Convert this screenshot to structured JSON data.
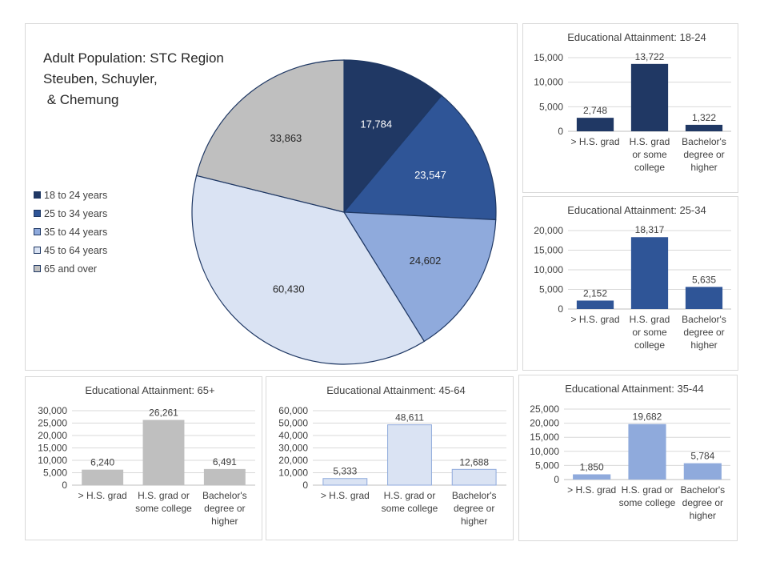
{
  "chart_data": [
    {
      "type": "pie",
      "title_lines": [
        "Adult Population: STC Region",
        "Steuben, Schuyler,",
        " & Chemung"
      ],
      "slices": [
        {
          "label": "18 to 24 years",
          "value": 17784,
          "value_label": "17,784",
          "color": "#203864"
        },
        {
          "label": "25 to 34 years",
          "value": 23547,
          "value_label": "23,547",
          "color": "#2f5597"
        },
        {
          "label": "35 to 44 years",
          "value": 24602,
          "value_label": "24,602",
          "color": "#8faadc"
        },
        {
          "label": "45 to 64 years",
          "value": 60430,
          "value_label": "60,430",
          "color": "#dae3f3"
        },
        {
          "label": "65 and over",
          "value": 33863,
          "value_label": "33,863",
          "color": "#bfbfbf"
        }
      ],
      "legend_position": "left"
    },
    {
      "type": "bar",
      "title": "Educational Attainment:  18-24",
      "categories": [
        [
          "> H.S. grad"
        ],
        [
          "H.S. grad",
          "or some",
          "college"
        ],
        [
          "Bachelor's",
          "degree or",
          "higher"
        ]
      ],
      "values": [
        2748,
        13722,
        1322
      ],
      "value_labels": [
        "2,748",
        "13,722",
        "1,322"
      ],
      "ylim": [
        0,
        15000
      ],
      "yticks": [
        "0",
        "5,000",
        "10,000",
        "15,000"
      ],
      "color": "#203864",
      "grid": true
    },
    {
      "type": "bar",
      "title": "Educational Attainment:  25-34",
      "categories": [
        [
          "> H.S. grad"
        ],
        [
          "H.S. grad",
          "or some",
          "college"
        ],
        [
          "Bachelor's",
          "degree or",
          "higher"
        ]
      ],
      "values": [
        2152,
        18317,
        5635
      ],
      "value_labels": [
        "2,152",
        "18,317",
        "5,635"
      ],
      "ylim": [
        0,
        20000
      ],
      "yticks": [
        "0",
        "5,000",
        "10,000",
        "15,000",
        "20,000"
      ],
      "color": "#2f5597",
      "grid": true
    },
    {
      "type": "bar",
      "title": "Educational Attainment:  65+",
      "categories": [
        [
          "> H.S. grad"
        ],
        [
          "H.S. grad or",
          "some college"
        ],
        [
          "Bachelor's",
          "degree or",
          "higher"
        ]
      ],
      "values": [
        6240,
        26261,
        6491
      ],
      "value_labels": [
        "6,240",
        "26,261",
        "6,491"
      ],
      "ylim": [
        0,
        30000
      ],
      "yticks": [
        "0",
        "5,000",
        "10,000",
        "15,000",
        "20,000",
        "25,000",
        "30,000"
      ],
      "color": "#bfbfbf",
      "grid": true
    },
    {
      "type": "bar",
      "title": "Educational Attainment:  45-64",
      "categories": [
        [
          "> H.S. grad"
        ],
        [
          "H.S. grad or",
          "some college"
        ],
        [
          "Bachelor's",
          "degree or",
          "higher"
        ]
      ],
      "values": [
        5333,
        48611,
        12688
      ],
      "value_labels": [
        "5,333",
        "48,611",
        "12,688"
      ],
      "ylim": [
        0,
        60000
      ],
      "yticks": [
        "0",
        "10,000",
        "20,000",
        "30,000",
        "40,000",
        "50,000",
        "60,000"
      ],
      "color": "#dae3f3",
      "grid": true
    },
    {
      "type": "bar",
      "title": "Educational Attainment:  35-44",
      "categories": [
        [
          "> H.S. grad"
        ],
        [
          "H.S. grad or",
          "some college"
        ],
        [
          "Bachelor's",
          "degree or",
          "higher"
        ]
      ],
      "values": [
        1850,
        19682,
        5784
      ],
      "value_labels": [
        "1,850",
        "19,682",
        "5,784"
      ],
      "ylim": [
        0,
        25000
      ],
      "yticks": [
        "0",
        "5,000",
        "10,000",
        "15,000",
        "20,000",
        "25,000"
      ],
      "color": "#8faadc",
      "grid": true
    }
  ]
}
